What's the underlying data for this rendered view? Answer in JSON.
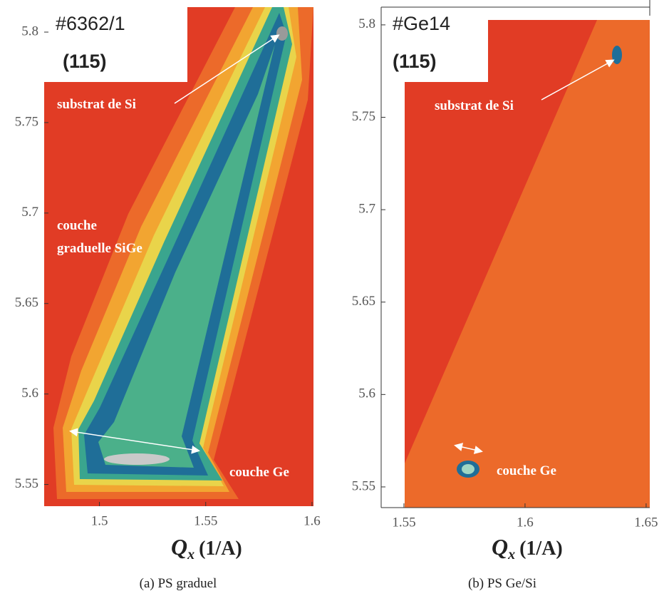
{
  "panels": [
    {
      "sample": "#6362/1",
      "reflection": "(115)",
      "annotations": [
        "substrat de Si",
        "couche",
        "graduelle SiGe",
        "couche Ge"
      ],
      "xlabel_symbol": "Q",
      "xlabel_sub": "x",
      "xlabel_unit": "(1/A)",
      "xlim": [
        1.474,
        1.6007
      ],
      "ylim": [
        5.538,
        5.8138
      ],
      "xticks": [
        1.5,
        1.55,
        1.6
      ],
      "yticks": [
        5.55,
        5.6,
        5.65,
        5.7,
        5.75,
        5.8
      ],
      "caption": "(a) PS graduel"
    },
    {
      "sample": "#Ge14",
      "reflection": "(115)",
      "annotations": [
        "substrat de Si",
        "couche Ge"
      ],
      "xlabel_symbol": "Q",
      "xlabel_sub": "x",
      "xlabel_unit": "(1/A)",
      "xlim": [
        1.5406,
        1.6515
      ],
      "ylim": [
        5.5388,
        5.8096
      ],
      "xticks": [
        1.55,
        1.6,
        1.65
      ],
      "yticks": [
        5.55,
        5.6,
        5.65,
        5.7,
        5.75,
        5.8
      ],
      "caption": "(b) PS Ge/Si"
    }
  ]
}
